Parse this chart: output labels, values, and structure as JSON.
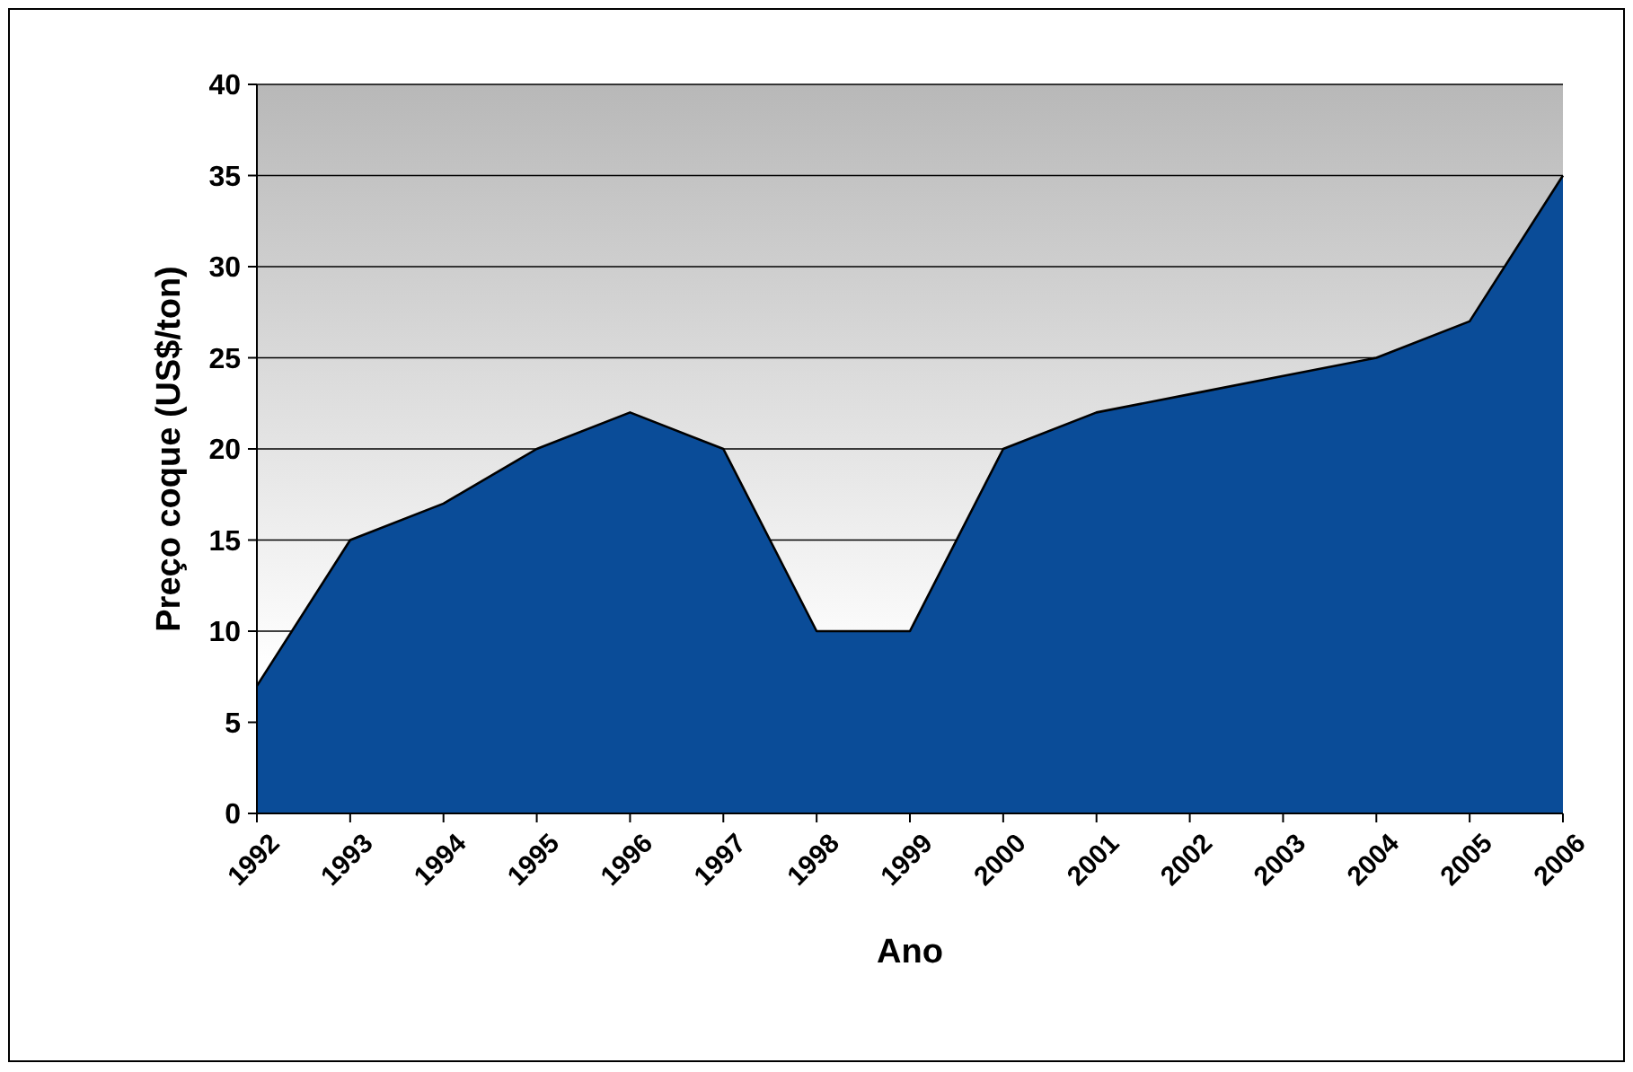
{
  "chart_data": {
    "type": "area",
    "xlabel": "Ano",
    "ylabel": "Preço coque (US$/ton)",
    "categories": [
      "1992",
      "1993",
      "1994",
      "1995",
      "1996",
      "1997",
      "1998",
      "1999",
      "2000",
      "2001",
      "2002",
      "2003",
      "2004",
      "2005",
      "2006"
    ],
    "series": [
      {
        "color": "#0a4c98",
        "values": [
          7,
          15,
          17,
          20,
          22,
          20,
          10,
          10,
          20,
          22,
          23,
          24,
          25,
          27,
          35
        ]
      }
    ],
    "ylim": [
      0,
      40
    ],
    "yticks": [
      0,
      5,
      10,
      15,
      20,
      25,
      30,
      35,
      40
    ],
    "grid": "y"
  }
}
